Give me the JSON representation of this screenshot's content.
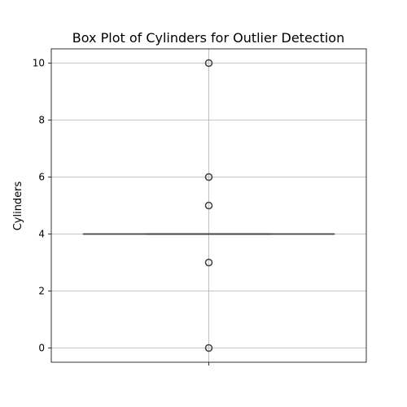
{
  "chart_data": {
    "type": "box",
    "title": "Box Plot of Cylinders for Outlier Detection",
    "xlabel": "",
    "ylabel": "Cylinders",
    "ylim": [
      -0.5,
      10.5
    ],
    "yticks": [
      0,
      2,
      4,
      6,
      8,
      10
    ],
    "grid": true,
    "box": {
      "q1": 4,
      "median": 4,
      "q3": 4,
      "whisker_low": 4,
      "whisker_high": 4
    },
    "outliers": [
      10,
      6,
      5,
      3,
      0
    ],
    "colors": {
      "grid": "#b0b0b0",
      "axis": "#000000",
      "box_line": "#3f3f3f",
      "outlier_edge": "#3f3f3f"
    }
  }
}
